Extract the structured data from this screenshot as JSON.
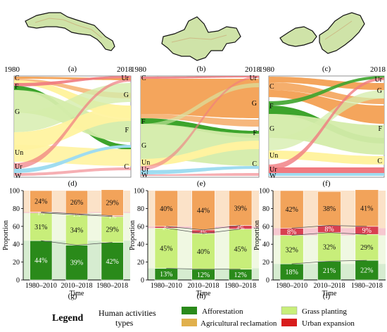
{
  "panel_letters": [
    "(a)",
    "(b)",
    "(c)",
    "(d)",
    "(e)",
    "(f)",
    "(g)",
    "(h)",
    "(i)"
  ],
  "sankey": {
    "start_year": "1980",
    "end_year": "2018",
    "panels": [
      {
        "left": [
          {
            "key": "C",
            "label": "C"
          },
          {
            "key": "F",
            "label": "F"
          },
          {
            "key": "G",
            "label": "G"
          },
          {
            "key": "Un",
            "label": "Un"
          },
          {
            "key": "Ur",
            "label": "Ur"
          },
          {
            "key": "W",
            "label": "W"
          }
        ],
        "right": [
          {
            "key": "Ur",
            "label": "Ur"
          },
          {
            "key": "G",
            "label": "G"
          },
          {
            "key": "F",
            "label": "F"
          },
          {
            "key": "C",
            "label": "C"
          }
        ]
      },
      {
        "left": [
          {
            "key": "C",
            "label": "C"
          },
          {
            "key": "F",
            "label": "F"
          },
          {
            "key": "G",
            "label": "G"
          },
          {
            "key": "Un",
            "label": "Un"
          },
          {
            "key": "Ur",
            "label": "Ur"
          },
          {
            "key": "W",
            "label": "W"
          }
        ],
        "right": [
          {
            "key": "Ur",
            "label": "Ur"
          },
          {
            "key": "G",
            "label": "G"
          },
          {
            "key": "F",
            "label": "F"
          },
          {
            "key": "C",
            "label": "C"
          }
        ]
      },
      {
        "left": [
          {
            "key": "C",
            "label": "C"
          },
          {
            "key": "F",
            "label": "F"
          },
          {
            "key": "G",
            "label": "G"
          },
          {
            "key": "Un",
            "label": "Un"
          },
          {
            "key": "Ur",
            "label": "Ur"
          },
          {
            "key": "W",
            "label": "W"
          }
        ],
        "right": [
          {
            "key": "Ur",
            "label": "Ur"
          },
          {
            "key": "G",
            "label": "G"
          },
          {
            "key": "F",
            "label": "F"
          },
          {
            "key": "C",
            "label": "C"
          }
        ]
      }
    ]
  },
  "chart_data": [
    {
      "type": "bar",
      "categories": [
        "1980–2010",
        "2010–2018",
        "1980–2018"
      ],
      "xlabel": "Time",
      "ylabel": "Proportion",
      "ylim": [
        0,
        100
      ],
      "yticks": [
        "0",
        "20",
        "40",
        "60",
        "80",
        "100"
      ],
      "series": [
        {
          "name": "Afforestation",
          "values": [
            44,
            39,
            42
          ],
          "labels": [
            "44%",
            "39%",
            "42%"
          ]
        },
        {
          "name": "Grass planting",
          "values": [
            31,
            34,
            29
          ],
          "labels": [
            "31%",
            "34%",
            "29%"
          ]
        },
        {
          "name": "Urban expansion",
          "values": [
            1,
            1,
            1
          ],
          "labels": [
            "1%",
            "1%",
            "1%"
          ]
        },
        {
          "name": "Agricultural reclamation",
          "values": [
            24,
            26,
            29
          ],
          "labels": [
            "24%",
            "26%",
            "29%"
          ]
        }
      ]
    },
    {
      "type": "bar",
      "categories": [
        "1980–2010",
        "2010–2018",
        "1980–2018"
      ],
      "xlabel": "Time",
      "ylabel": "Proportion",
      "ylim": [
        0,
        100
      ],
      "yticks": [
        "0",
        "20",
        "40",
        "60",
        "80",
        "100"
      ],
      "series": [
        {
          "name": "Afforestation",
          "values": [
            13,
            12,
            12
          ],
          "labels": [
            "13%",
            "12%",
            "12%"
          ]
        },
        {
          "name": "Grass planting",
          "values": [
            45,
            40,
            45
          ],
          "labels": [
            "45%",
            "40%",
            "45%"
          ]
        },
        {
          "name": "Urban expansion",
          "values": [
            2,
            4,
            4
          ],
          "labels": [
            "2%",
            "4%",
            "4%"
          ]
        },
        {
          "name": "Agricultural reclamation",
          "values": [
            40,
            44,
            39
          ],
          "labels": [
            "40%",
            "44%",
            "39%"
          ]
        }
      ]
    },
    {
      "type": "bar",
      "categories": [
        "1980–2010",
        "2010–2018",
        "1980–2018"
      ],
      "xlabel": "Time",
      "ylabel": "Proportion",
      "ylim": [
        0,
        100
      ],
      "yticks": [
        "0",
        "20",
        "40",
        "60",
        "80",
        "100"
      ],
      "series": [
        {
          "name": "Afforestation",
          "values": [
            18,
            21,
            22
          ],
          "labels": [
            "18%",
            "21%",
            "22%"
          ]
        },
        {
          "name": "Grass planting",
          "values": [
            32,
            32,
            29
          ],
          "labels": [
            "32%",
            "32%",
            "29%"
          ]
        },
        {
          "name": "Urban expansion",
          "values": [
            8,
            8,
            9
          ],
          "labels": [
            "8%",
            "8%",
            "9%"
          ]
        },
        {
          "name": "Agricultural reclamation",
          "values": [
            42,
            38,
            41
          ],
          "labels": [
            "42%",
            "38%",
            "41%"
          ]
        }
      ]
    }
  ],
  "legend": {
    "title": "Legend",
    "subtitle_line1": "Human activities",
    "subtitle_line2": "types",
    "items": [
      {
        "label": "Afforestation",
        "color": "#2a8a1a"
      },
      {
        "label": "Grass planting",
        "color": "#c8ee7a"
      },
      {
        "label": "Agricultural reclamation",
        "color": "#e0b04c"
      },
      {
        "label": "Urban expansion",
        "color": "#d81c1c"
      }
    ]
  },
  "colors": {
    "afforestation": "#2a8a1a",
    "grass": "#c8ee7a",
    "urban": "#d84050",
    "agri": "#f2a35a",
    "forest_flow": "#3da42c",
    "grass_flow": "#d4ecaa",
    "crop_flow": "#f4a55c",
    "unused_flow": "#fff3a0",
    "urban_flow": "#f07a80",
    "water_flow": "#9fdcf0"
  }
}
